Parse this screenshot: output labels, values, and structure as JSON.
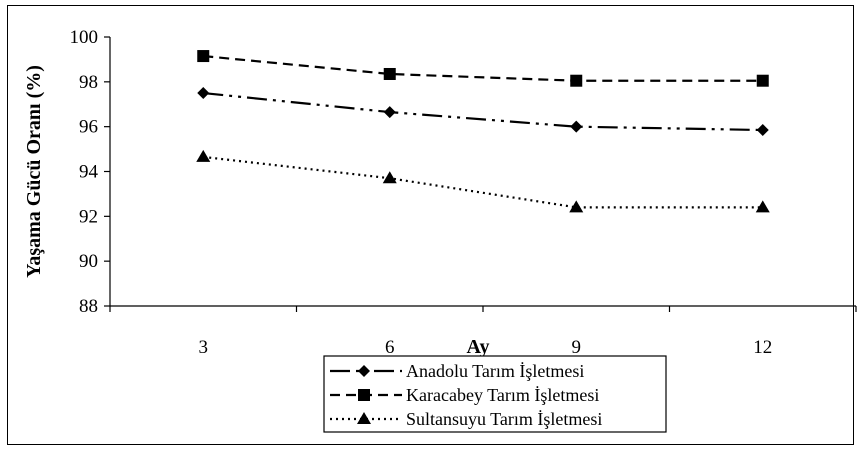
{
  "chart_data": {
    "type": "line",
    "title": "",
    "xlabel": "Ay",
    "ylabel": "Yaşama Gücü Oranı (%)",
    "categories": [
      "3",
      "6",
      "9",
      "12"
    ],
    "ylim": [
      88,
      100
    ],
    "yticks": [
      "88",
      "90",
      "92",
      "94",
      "96",
      "98",
      "100"
    ],
    "grid": false,
    "legend_position": "bottom-center",
    "series": [
      {
        "name": "Anadolu Tarım İşletmesi",
        "marker": "diamond",
        "dash": "dash-dot-dot",
        "color": "#000000",
        "values": [
          97.5,
          96.65,
          96.0,
          95.85
        ]
      },
      {
        "name": "Karacabey Tarım İşletmesi",
        "marker": "square",
        "dash": "dash",
        "color": "#000000",
        "values": [
          99.15,
          98.35,
          98.05,
          98.05
        ]
      },
      {
        "name": "Sultansuyu Tarım İşletmesi",
        "marker": "triangle",
        "dash": "dot",
        "color": "#000000",
        "values": [
          94.65,
          93.7,
          92.4,
          92.4
        ]
      }
    ]
  }
}
